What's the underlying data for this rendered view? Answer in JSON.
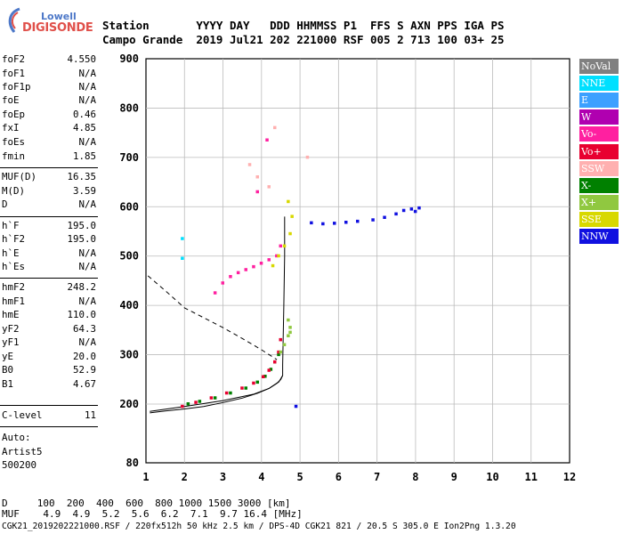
{
  "logo": {
    "top": "Lowell",
    "bottom": "DIGISONDE"
  },
  "header": {
    "row1": "Station       YYYY DAY   DDD HHMMSS P1  FFS S AXN PPS IGA PS",
    "row2": "Campo Grande  2019 Jul21 202 221000 RSF 005 2 713 100 03+ 25"
  },
  "params": [
    {
      "k": "foF2",
      "v": "4.550"
    },
    {
      "k": "foF1",
      "v": "N/A"
    },
    {
      "k": "foF1p",
      "v": "N/A"
    },
    {
      "k": "foE",
      "v": "N/A"
    },
    {
      "k": "foEp",
      "v": "0.46"
    },
    {
      "k": "fxI",
      "v": "4.85"
    },
    {
      "k": "foEs",
      "v": "N/A"
    },
    {
      "k": "fmin",
      "v": "1.85"
    },
    {
      "k": "MUF(D)",
      "v": "16.35"
    },
    {
      "k": "M(D)",
      "v": "3.59"
    },
    {
      "k": "D",
      "v": "N/A"
    },
    {
      "k": "h`F",
      "v": "195.0"
    },
    {
      "k": "h`F2",
      "v": "195.0"
    },
    {
      "k": "h`E",
      "v": "N/A"
    },
    {
      "k": "h`Es",
      "v": "N/A"
    },
    {
      "k": "hmF2",
      "v": "248.2"
    },
    {
      "k": "hmF1",
      "v": "N/A"
    },
    {
      "k": "hmE",
      "v": "110.0"
    },
    {
      "k": "yF2",
      "v": "64.3"
    },
    {
      "k": "yF1",
      "v": "N/A"
    },
    {
      "k": "yE",
      "v": "20.0"
    },
    {
      "k": "B0",
      "v": "52.9"
    },
    {
      "k": "B1",
      "v": "4.67"
    },
    {
      "k": "C-level",
      "v": "11"
    }
  ],
  "auto": {
    "line1": "Auto:",
    "line2": "Artist5",
    "line3": "500200"
  },
  "legend": [
    {
      "label": "NoVal",
      "color": "#808080"
    },
    {
      "label": "NNE",
      "color": "#00e0ff"
    },
    {
      "label": "E",
      "color": "#3ca0ff"
    },
    {
      "label": "W",
      "color": "#b000b0"
    },
    {
      "label": "Vo-",
      "color": "#ff20a0"
    },
    {
      "label": "Vo+",
      "color": "#e80030"
    },
    {
      "label": "SSW",
      "color": "#ffb0b0"
    },
    {
      "label": "X-",
      "color": "#008000"
    },
    {
      "label": "X+",
      "color": "#90c840"
    },
    {
      "label": "SSE",
      "color": "#d8d800"
    },
    {
      "label": "NNW",
      "color": "#1010e0"
    }
  ],
  "footer": {
    "row1": "D     100  200  400  600  800 1000 1500 3000 [km]",
    "row2": "MUF    4.9  4.9  5.2  5.6  6.2  7.1  9.7 16.4 [MHz]",
    "row3": "CGK21_2019202221000.RSF / 220fx512h 50 kHz 2.5 km / DPS-4D CGK21 821 / 20.5 S 305.0 E Ion2Png 1.3.20"
  },
  "chart_data": {
    "type": "scatter",
    "xlim": [
      1,
      12
    ],
    "ylim": [
      80,
      900
    ],
    "xticks": [
      "1",
      "2",
      "3",
      "4",
      "5",
      "6",
      "7",
      "8",
      "9",
      "10",
      "11",
      "12"
    ],
    "yticks": [
      "80",
      "200",
      "300",
      "400",
      "500",
      "600",
      "700",
      "800",
      "900"
    ],
    "grid": true,
    "series": [
      {
        "name": "X-",
        "color": "#008000",
        "x": [
          2.1,
          2.4,
          2.8,
          3.2,
          3.6,
          3.9,
          4.1,
          4.25,
          4.35,
          4.45
        ],
        "y": [
          200,
          205,
          212,
          222,
          232,
          244,
          256,
          270,
          285,
          300
        ]
      },
      {
        "name": "Vo+",
        "color": "#e80030",
        "x": [
          1.95,
          2.3,
          2.7,
          3.1,
          3.5,
          3.8,
          4.05,
          4.2,
          4.35,
          4.45,
          4.5
        ],
        "y": [
          195,
          203,
          212,
          222,
          232,
          242,
          255,
          268,
          285,
          305,
          330
        ]
      },
      {
        "name": "X+",
        "color": "#90c840",
        "x": [
          4.5,
          4.6,
          4.7,
          4.75,
          4.7,
          4.75
        ],
        "y": [
          305,
          320,
          338,
          355,
          370,
          345
        ]
      },
      {
        "name": "NNW",
        "color": "#1010e0",
        "x": [
          5.3,
          5.6,
          5.9,
          6.2,
          6.5,
          6.9,
          7.2,
          7.5,
          7.7,
          7.9,
          8.0,
          8.1,
          4.9
        ],
        "y": [
          567,
          565,
          566,
          568,
          570,
          573,
          578,
          585,
          592,
          595,
          590,
          597,
          195
        ]
      },
      {
        "name": "Vo-",
        "color": "#ff20a0",
        "x": [
          2.8,
          3.0,
          3.2,
          3.4,
          3.6,
          3.8,
          4.0,
          4.2,
          4.4,
          4.5,
          3.9,
          4.15
        ],
        "y": [
          425,
          445,
          458,
          466,
          472,
          478,
          485,
          492,
          500,
          520,
          630,
          735
        ]
      },
      {
        "name": "SSE",
        "color": "#d8d800",
        "x": [
          4.3,
          4.45,
          4.6,
          4.75,
          4.8,
          4.7
        ],
        "y": [
          480,
          500,
          520,
          545,
          580,
          610
        ]
      },
      {
        "name": "SSW",
        "color": "#ffb0b0",
        "x": [
          3.7,
          3.9,
          4.2,
          4.35,
          5.2
        ],
        "y": [
          685,
          660,
          640,
          760,
          700
        ]
      },
      {
        "name": "NNE",
        "color": "#00e0ff",
        "x": [
          1.95,
          1.95
        ],
        "y": [
          535,
          495
        ]
      }
    ],
    "trace_solid": {
      "x": [
        1.1,
        2,
        3,
        3.8,
        4.2,
        4.45,
        4.55,
        4.55,
        4.58,
        4.6,
        4.6
      ],
      "y": [
        185,
        195,
        207,
        220,
        232,
        245,
        258,
        280,
        400,
        500,
        580
      ]
    },
    "trace_solid2": {
      "x": [
        4.55,
        4.5,
        4.4,
        4.2,
        3.9,
        3.5,
        3.0,
        2.5,
        2.0,
        1.5,
        1.1
      ],
      "y": [
        258,
        250,
        242,
        232,
        222,
        212,
        203,
        195,
        190,
        186,
        182
      ]
    },
    "trace_dashed": {
      "x": [
        1.05,
        1.5,
        2,
        2.5,
        3,
        3.5,
        4.0,
        4.2,
        4.4
      ],
      "y": [
        460,
        430,
        395,
        375,
        355,
        333,
        310,
        300,
        290
      ]
    }
  }
}
